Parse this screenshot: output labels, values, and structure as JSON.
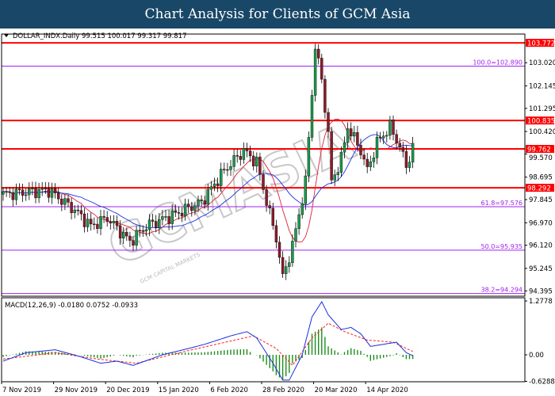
{
  "title": "Chart Analysis for Clients of GCM Asia",
  "watermark": "GCMASIA",
  "watermark_sub": "GCM CAPITAL MARKETS",
  "colors": {
    "bull": "#1e9a4e",
    "bear": "#8c1c2c",
    "fast_ma": "#e0203a",
    "slow_ma": "#1a2ee0",
    "level": "#ff0000",
    "fib": "#a020f0",
    "macd": "#1a2ee0",
    "signal": "#ff2020",
    "hist": "#1e8c1e"
  },
  "chart_data": {
    "type": "candlestick",
    "header": {
      "symbol": "DOLLAR_INDX.Daily",
      "ohlc": "99.515 100.017 99.317 99.817"
    },
    "ylim": [
      94.295,
      104.1
    ],
    "y_ticks": [
      "103.020",
      "102.145",
      "101.295",
      "100.420",
      "99.570",
      "98.695",
      "97.845",
      "96.970",
      "96.120",
      "95.245",
      "94.395"
    ],
    "x_ticks": [
      "7 Nov 2019",
      "29 Nov 2019",
      "20 Dec 2019",
      "15 Jan 2020",
      "6 Feb 2020",
      "28 Feb 2020",
      "20 Mar 2020",
      "14 Apr 2020"
    ],
    "x_tick_bars": [
      0,
      16,
      32,
      48,
      64,
      80,
      96,
      112
    ],
    "resistance_support": [
      {
        "label": "103.772",
        "value": 103.772
      },
      {
        "label": "100.835",
        "value": 100.835
      },
      {
        "label": "99.762",
        "value": 99.762
      },
      {
        "label": "98.292",
        "value": 98.292
      }
    ],
    "fibonacci": [
      {
        "label": "100.0=102.890",
        "value": 102.89
      },
      {
        "label": "61.8=97.576",
        "value": 97.576
      },
      {
        "label": "50.0=95.935",
        "value": 95.935
      },
      {
        "label": "38.2=94.294",
        "value": 94.294
      }
    ],
    "close_waypoints": [
      [
        0,
        98.05
      ],
      [
        14,
        98.2
      ],
      [
        22,
        97.45
      ],
      [
        27,
        96.85
      ],
      [
        32,
        97.15
      ],
      [
        39,
        96.26
      ],
      [
        44,
        96.85
      ],
      [
        52,
        97.25
      ],
      [
        61,
        97.75
      ],
      [
        68,
        98.95
      ],
      [
        74,
        99.7
      ],
      [
        78,
        99.25
      ],
      [
        82,
        97.3
      ],
      [
        84,
        96.4
      ],
      [
        86,
        94.9
      ],
      [
        89,
        96.1
      ],
      [
        93,
        98.5
      ],
      [
        96,
        103.6
      ],
      [
        98,
        102.4
      ],
      [
        100,
        100.3
      ],
      [
        101,
        98.5
      ],
      [
        104,
        99.4
      ],
      [
        106,
        100.6
      ],
      [
        110,
        99.7
      ],
      [
        112,
        98.95
      ],
      [
        115,
        100.0
      ],
      [
        119,
        100.6
      ],
      [
        122,
        99.85
      ],
      [
        124,
        99.1
      ],
      [
        126,
        99.82
      ]
    ],
    "macd": {
      "label": "MACD(12,26,9) -0.0180 0.0752 -0.0933",
      "ylim": [
        -0.6288,
        1.2778
      ],
      "y_ticks": [
        "1.2778",
        "0.00",
        "-0.6288"
      ],
      "macd_waypoints": [
        [
          0,
          -0.15
        ],
        [
          7,
          0.05
        ],
        [
          16,
          0.12
        ],
        [
          24,
          -0.05
        ],
        [
          30,
          -0.2
        ],
        [
          35,
          -0.15
        ],
        [
          40,
          -0.25
        ],
        [
          49,
          0.0
        ],
        [
          57,
          0.15
        ],
        [
          62,
          0.25
        ],
        [
          70,
          0.45
        ],
        [
          75,
          0.55
        ],
        [
          78,
          0.4
        ],
        [
          83,
          -0.2
        ],
        [
          86,
          -0.6
        ],
        [
          88,
          -0.6
        ],
        [
          92,
          0.0
        ],
        [
          95,
          0.9
        ],
        [
          98,
          1.26
        ],
        [
          100,
          0.95
        ],
        [
          104,
          0.6
        ],
        [
          107,
          0.65
        ],
        [
          110,
          0.5
        ],
        [
          113,
          0.2
        ],
        [
          117,
          0.25
        ],
        [
          121,
          0.3
        ],
        [
          124,
          0.05
        ],
        [
          126,
          -0.02
        ]
      ],
      "signal_waypoints": [
        [
          0,
          -0.1
        ],
        [
          16,
          0.05
        ],
        [
          29,
          -0.1
        ],
        [
          41,
          -0.2
        ],
        [
          57,
          0.1
        ],
        [
          77,
          0.45
        ],
        [
          84,
          0.15
        ],
        [
          89,
          -0.25
        ],
        [
          95,
          0.4
        ],
        [
          100,
          0.75
        ],
        [
          105,
          0.55
        ],
        [
          112,
          0.35
        ],
        [
          120,
          0.3
        ],
        [
          126,
          0.08
        ]
      ]
    }
  }
}
